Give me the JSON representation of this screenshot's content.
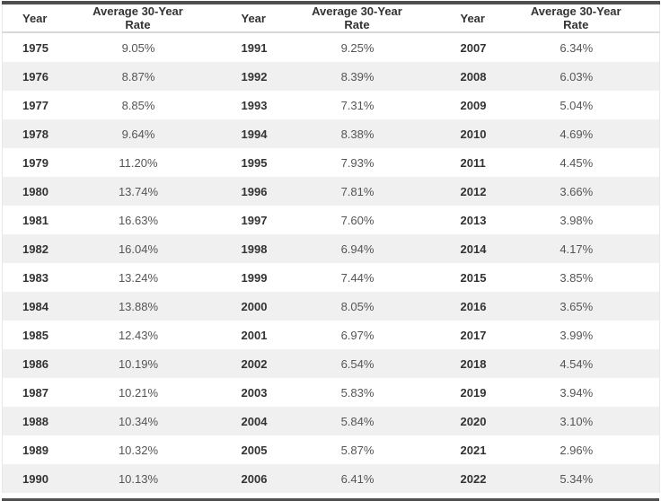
{
  "colors": {
    "top_border": "#4f4f4f",
    "bottom_border": "#4f4f4f",
    "stripe_row": "#f0f0f0",
    "header_divider": "#d9d9d9",
    "side_border": "#e8e8e8",
    "header_text": "#333333",
    "year_text": "#333333",
    "rate_text": "#555555"
  },
  "chart_data": {
    "type": "table",
    "columns": [
      "Year",
      "Average 30-Year Rate",
      "Year",
      "Average 30-Year Rate",
      "Year",
      "Average 30-Year Rate"
    ],
    "rows": [
      [
        "1975",
        "9.05%",
        "1991",
        "9.25%",
        "2007",
        "6.34%"
      ],
      [
        "1976",
        "8.87%",
        "1992",
        "8.39%",
        "2008",
        "6.03%"
      ],
      [
        "1977",
        "8.85%",
        "1993",
        "7.31%",
        "2009",
        "5.04%"
      ],
      [
        "1978",
        "9.64%",
        "1994",
        "8.38%",
        "2010",
        "4.69%"
      ],
      [
        "1979",
        "11.20%",
        "1995",
        "7.93%",
        "2011",
        "4.45%"
      ],
      [
        "1980",
        "13.74%",
        "1996",
        "7.81%",
        "2012",
        "3.66%"
      ],
      [
        "1981",
        "16.63%",
        "1997",
        "7.60%",
        "2013",
        "3.98%"
      ],
      [
        "1982",
        "16.04%",
        "1998",
        "6.94%",
        "2014",
        "4.17%"
      ],
      [
        "1983",
        "13.24%",
        "1999",
        "7.44%",
        "2015",
        "3.85%"
      ],
      [
        "1984",
        "13.88%",
        "2000",
        "8.05%",
        "2016",
        "3.65%"
      ],
      [
        "1985",
        "12.43%",
        "2001",
        "6.97%",
        "2017",
        "3.99%"
      ],
      [
        "1986",
        "10.19%",
        "2002",
        "6.54%",
        "2018",
        "4.54%"
      ],
      [
        "1987",
        "10.21%",
        "2003",
        "5.83%",
        "2019",
        "3.94%"
      ],
      [
        "1988",
        "10.34%",
        "2004",
        "5.84%",
        "2020",
        "3.10%"
      ],
      [
        "1989",
        "10.32%",
        "2005",
        "5.87%",
        "2021",
        "2.96%"
      ],
      [
        "1990",
        "10.13%",
        "2006",
        "6.41%",
        "2022",
        "5.34%"
      ]
    ]
  }
}
